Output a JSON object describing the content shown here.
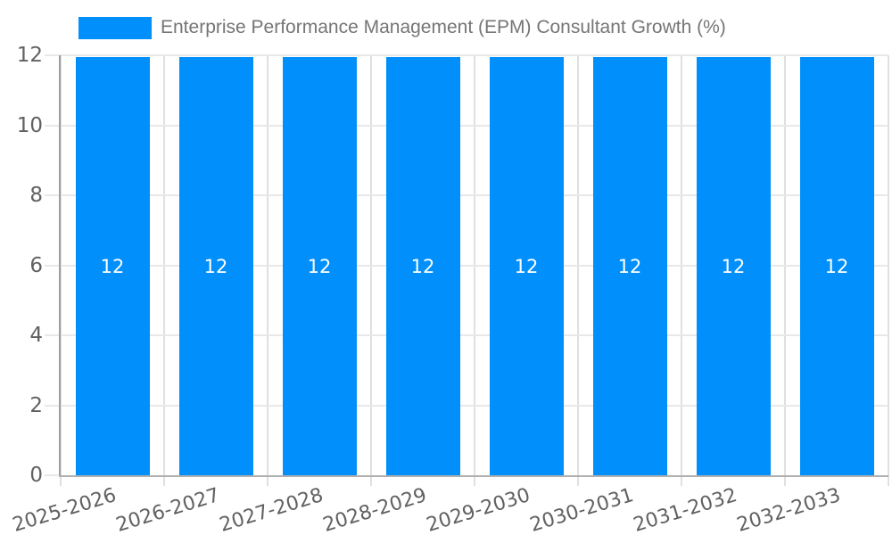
{
  "legend": {
    "label": "Enterprise Performance Management (EPM) Consultant Growth (%)"
  },
  "chart_data": {
    "type": "bar",
    "title": "Enterprise Performance Management (EPM) Consultant Growth (%)",
    "categories": [
      "2025-2026",
      "2026-2027",
      "2027-2028",
      "2028-2029",
      "2029-2030",
      "2030-2031",
      "2031-2032",
      "2032-2033"
    ],
    "series": [
      {
        "name": "Enterprise Performance Management (EPM) Consultant Growth (%)",
        "values": [
          12,
          12,
          12,
          12,
          12,
          12,
          12,
          12
        ]
      }
    ],
    "value_labels": [
      "12",
      "12",
      "12",
      "12",
      "12",
      "12",
      "12",
      "12"
    ],
    "xlabel": "",
    "ylabel": "",
    "ylim": [
      0,
      12
    ],
    "yticks": [
      0,
      2,
      4,
      6,
      8,
      10,
      12
    ],
    "grid": true,
    "legend_position": "top",
    "x_label_rotation_deg": -17,
    "colors": {
      "bar": "#008FFB",
      "bar_label": "#ffffff",
      "axis_label": "#616161",
      "legend_text": "#757575",
      "grid_h": "#e8e8e8",
      "grid_v": "#e0e0e0",
      "axis_line": "#9e9e9e",
      "baseline": "#b0b0b0",
      "background": "#ffffff"
    }
  }
}
